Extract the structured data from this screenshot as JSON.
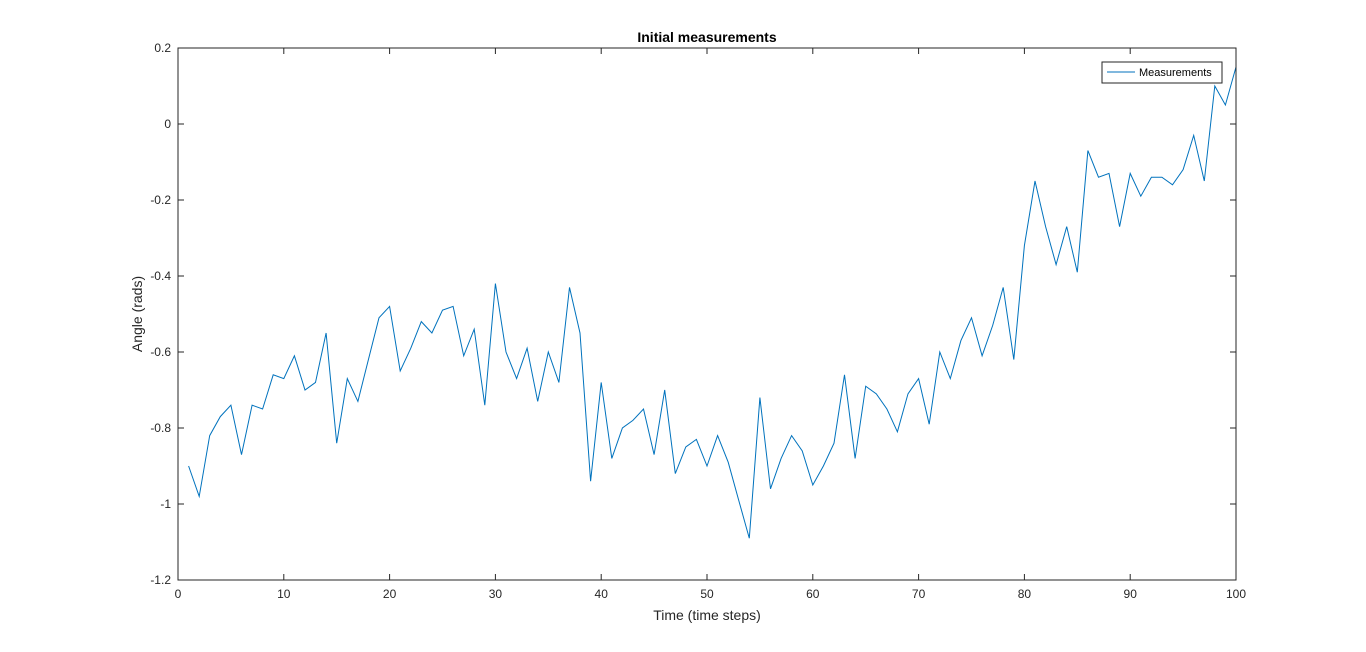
{
  "chart_data": {
    "type": "line",
    "title": "Initial measurements",
    "xlabel": "Time (time steps)",
    "ylabel": "Angle (rads)",
    "xlim": [
      0,
      100
    ],
    "ylim": [
      -1.2,
      0.2
    ],
    "xticks": [
      0,
      10,
      20,
      30,
      40,
      50,
      60,
      70,
      80,
      90,
      100
    ],
    "yticks": [
      -1.2,
      -1,
      -0.8,
      -0.6,
      -0.4,
      -0.2,
      0,
      0.2
    ],
    "xtick_labels": [
      "0",
      "10",
      "20",
      "30",
      "40",
      "50",
      "60",
      "70",
      "80",
      "90",
      "100"
    ],
    "ytick_labels": [
      "-1.2",
      "-1",
      "-0.8",
      "-0.6",
      "-0.4",
      "-0.2",
      "0",
      "0.2"
    ],
    "grid": false,
    "legend_position": "top-right",
    "series": [
      {
        "name": "Measurements",
        "color": "#0072bd",
        "x": [
          1,
          2,
          3,
          4,
          5,
          6,
          7,
          8,
          9,
          10,
          11,
          12,
          13,
          14,
          15,
          16,
          17,
          18,
          19,
          20,
          21,
          22,
          23,
          24,
          25,
          26,
          27,
          28,
          29,
          30,
          31,
          32,
          33,
          34,
          35,
          36,
          37,
          38,
          39,
          40,
          41,
          42,
          43,
          44,
          45,
          46,
          47,
          48,
          49,
          50,
          51,
          52,
          53,
          54,
          55,
          56,
          57,
          58,
          59,
          60,
          61,
          62,
          63,
          64,
          65,
          66,
          67,
          68,
          69,
          70,
          71,
          72,
          73,
          74,
          75,
          76,
          77,
          78,
          79,
          80,
          81,
          82,
          83,
          84,
          85,
          86,
          87,
          88,
          89,
          90,
          91,
          92,
          93,
          94,
          95,
          96,
          97,
          98,
          99,
          100
        ],
        "y": [
          -0.9,
          -0.98,
          -0.82,
          -0.77,
          -0.74,
          -0.87,
          -0.74,
          -0.75,
          -0.66,
          -0.67,
          -0.61,
          -0.7,
          -0.68,
          -0.55,
          -0.84,
          -0.67,
          -0.73,
          -0.62,
          -0.51,
          -0.48,
          -0.65,
          -0.59,
          -0.52,
          -0.55,
          -0.49,
          -0.48,
          -0.61,
          -0.54,
          -0.74,
          -0.42,
          -0.6,
          -0.67,
          -0.59,
          -0.73,
          -0.6,
          -0.68,
          -0.43,
          -0.55,
          -0.94,
          -0.68,
          -0.88,
          -0.8,
          -0.78,
          -0.75,
          -0.87,
          -0.7,
          -0.92,
          -0.85,
          -0.83,
          -0.9,
          -0.82,
          -0.89,
          -0.99,
          -1.09,
          -0.72,
          -0.96,
          -0.88,
          -0.82,
          -0.86,
          -0.95,
          -0.9,
          -0.84,
          -0.66,
          -0.88,
          -0.69,
          -0.71,
          -0.75,
          -0.81,
          -0.71,
          -0.67,
          -0.79,
          -0.6,
          -0.67,
          -0.57,
          -0.51,
          -0.61,
          -0.53,
          -0.43,
          -0.62,
          -0.32,
          -0.15,
          -0.27,
          -0.37,
          -0.27,
          -0.39,
          -0.07,
          -0.14,
          -0.13,
          -0.27,
          -0.13,
          -0.19,
          -0.14,
          -0.14,
          -0.16,
          -0.12,
          -0.03,
          -0.15,
          0.1,
          0.05,
          0.15
        ]
      }
    ]
  }
}
